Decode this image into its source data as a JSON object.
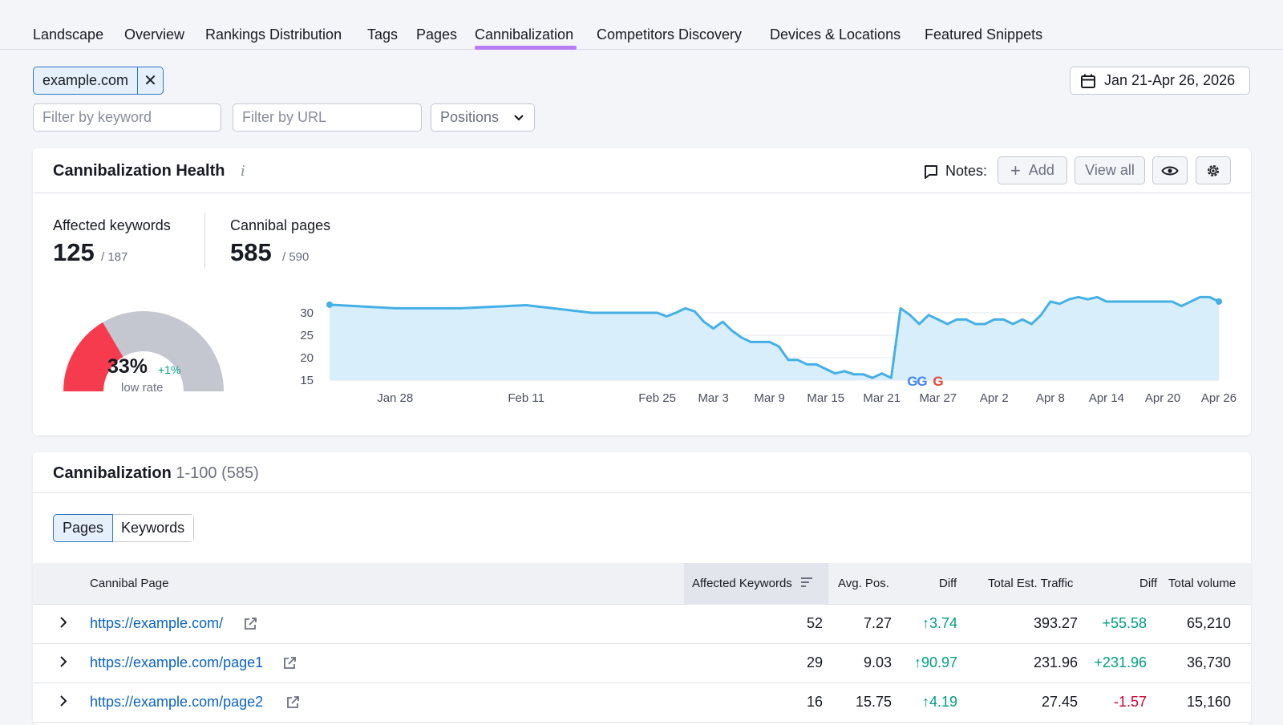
{
  "nav": {
    "tabs": [
      {
        "label": "Landscape",
        "active": false
      },
      {
        "label": "Overview",
        "active": false
      },
      {
        "label": "Rankings Distribution",
        "active": false
      },
      {
        "label": "Tags",
        "active": false
      },
      {
        "label": "Pages",
        "active": false
      },
      {
        "label": "Cannibalization",
        "active": true
      },
      {
        "label": "Competitors Discovery",
        "active": false
      },
      {
        "label": "Devices & Locations",
        "active": false
      },
      {
        "label": "Featured Snippets",
        "active": false
      }
    ]
  },
  "filters": {
    "domain_chip": "example.com",
    "date_range": "Jan 21-Apr 26, 2026",
    "keyword_placeholder": "Filter by keyword",
    "url_placeholder": "Filter by URL",
    "positions_label": "Positions"
  },
  "health": {
    "title": "Cannibalization Health",
    "info": "i",
    "notes_label": "Notes:",
    "add_label": "Add",
    "view_all_label": "View all",
    "affected_keywords_label": "Affected keywords",
    "affected_keywords_value": "125",
    "affected_keywords_total": "/ 187",
    "cannibal_pages_label": "Cannibal pages",
    "cannibal_pages_value": "585",
    "cannibal_pages_total": "/ 590",
    "gauge": {
      "percent": 33,
      "percent_label": "33%",
      "delta": "+1%",
      "rate_label": "low rate",
      "low_color": "#f73b4e",
      "rest_color": "#c4c7d0"
    }
  },
  "chart_data": {
    "type": "area",
    "x_tick_labels": [
      "Jan 28",
      "Feb 11",
      "Feb 25",
      "Mar 3",
      "Mar 9",
      "Mar 15",
      "Mar 21",
      "Mar 27",
      "Apr 2",
      "Apr 8",
      "Apr 14",
      "Apr 20",
      "Apr 26"
    ],
    "y_tick_labels": [
      "30",
      "25",
      "20",
      "15"
    ],
    "ylim": [
      15,
      32
    ],
    "x": [
      "Jan 21",
      "Jan 28",
      "Feb 4",
      "Feb 11",
      "Feb 18",
      "Feb 25",
      "Feb 26",
      "Feb 27",
      "Feb 28",
      "Mar 1",
      "Mar 2",
      "Mar 3",
      "Mar 4",
      "Mar 5",
      "Mar 6",
      "Mar 7",
      "Mar 8",
      "Mar 9",
      "Mar 10",
      "Mar 11",
      "Mar 12",
      "Mar 13",
      "Mar 14",
      "Mar 15",
      "Mar 16",
      "Mar 17",
      "Mar 18",
      "Mar 19",
      "Mar 20",
      "Mar 21",
      "Mar 22",
      "Mar 23",
      "Mar 24",
      "Mar 25",
      "Mar 26",
      "Mar 27",
      "Mar 28",
      "Mar 29",
      "Mar 30",
      "Mar 31",
      "Apr 1",
      "Apr 2",
      "Apr 3",
      "Apr 4",
      "Apr 5",
      "Apr 6",
      "Apr 7",
      "Apr 8",
      "Apr 9",
      "Apr 10",
      "Apr 11",
      "Apr 12",
      "Apr 13",
      "Apr 14",
      "Apr 15",
      "Apr 16",
      "Apr 17",
      "Apr 18",
      "Apr 19",
      "Apr 20",
      "Apr 21",
      "Apr 22",
      "Apr 23",
      "Apr 24",
      "Apr 25",
      "Apr 26"
    ],
    "values": [
      31.8,
      31,
      31,
      31.7,
      30,
      30,
      29.2,
      30,
      31,
      30.3,
      28,
      26.5,
      28,
      26,
      24.5,
      23.5,
      23.5,
      23.5,
      22.5,
      19.5,
      19.5,
      18.5,
      18.5,
      17.5,
      16.5,
      17,
      16.3,
      16.3,
      15.5,
      16.5,
      15.5,
      31,
      29.5,
      27.5,
      29.5,
      28.5,
      27.5,
      28.5,
      28.5,
      27.5,
      27.5,
      28.5,
      28.5,
      27.5,
      28.5,
      27.5,
      29.5,
      32.5,
      32,
      33,
      33.5,
      33,
      33.5,
      32.5,
      32.5,
      32.5,
      32.5,
      32.5,
      32.5,
      32.5,
      32.5,
      31.5,
      32.5,
      33.5,
      33.5,
      32.5
    ],
    "annotation_markers": [
      "G",
      "G",
      "G"
    ],
    "line_color": "#44b0e6",
    "fill_color": "#d9eefb",
    "grid": true
  },
  "table": {
    "title": "Cannibalization",
    "range": "1-100 (585)",
    "segments": [
      "Pages",
      "Keywords"
    ],
    "columns": [
      "Cannibal Page",
      "Affected Keywords",
      "Avg. Pos.",
      "Diff",
      "Total Est. Traffic",
      "Diff",
      "Total volume"
    ],
    "rows": [
      {
        "url": "https://example.com/",
        "affected": "52",
        "avg_pos": "7.27",
        "pos_diff": "3.74",
        "traffic": "393.27",
        "traffic_diff": "+55.58",
        "traffic_diff_sign": "pos",
        "volume": "65,210"
      },
      {
        "url": "https://example.com/page1",
        "affected": "29",
        "avg_pos": "9.03",
        "pos_diff": "90.97",
        "traffic": "231.96",
        "traffic_diff": "+231.96",
        "traffic_diff_sign": "pos",
        "volume": "36,730"
      },
      {
        "url": "https://example.com/page2",
        "affected": "16",
        "avg_pos": "15.75",
        "pos_diff": "4.19",
        "traffic": "27.45",
        "traffic_diff": "-1.57",
        "traffic_diff_sign": "neg",
        "volume": "15,160"
      }
    ]
  }
}
